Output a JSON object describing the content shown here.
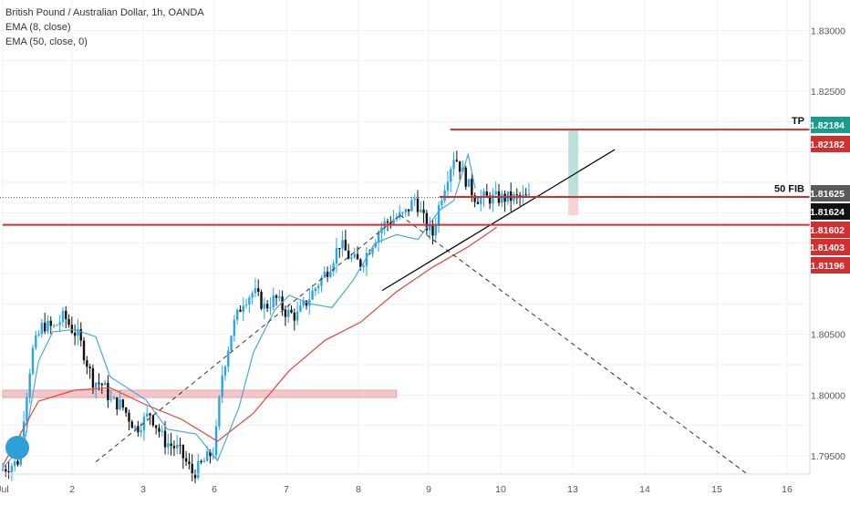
{
  "legend": {
    "symbol_line": "British Pound / Australian Dollar, 1h, OANDA",
    "ema_fast": "EMA (8, close)",
    "ema_slow": "EMA (50, close, 0)"
  },
  "colors": {
    "up": "#26a6e8",
    "down": "#111111",
    "ema_fast": "#4aa8e0",
    "ema_slow": "#e5443a",
    "level": "#d32f2f",
    "trendline": "#000000",
    "dashed": "#333333",
    "zone": "#f3c7c9",
    "tp_box": "#b9e2dc",
    "sl_box": "#f7d3d4",
    "tag_green": "#1a9c8a",
    "tag_red": "#d32f2f",
    "tag_black": "#111111"
  },
  "chart_data": {
    "type": "line",
    "title": "British Pound / Australian Dollar, 1h, OANDA",
    "xlabel": "",
    "ylabel": "",
    "ylim": [
      1.7935,
      1.8325
    ],
    "grid": true,
    "x_ticks": [
      "Jul",
      "2",
      "3",
      "6",
      "7",
      "8",
      "9",
      "10",
      "13",
      "14",
      "15",
      "16"
    ],
    "y_ticks": [
      "1.83000",
      "1.82500",
      "1.80500",
      "1.80000",
      "1.79500"
    ],
    "price_tags": [
      {
        "label": "1.82184",
        "color": "green"
      },
      {
        "label": "1.82182",
        "color": "red"
      },
      {
        "label": "1.81625",
        "color": "gray"
      },
      {
        "label": "1.81624",
        "color": "black"
      },
      {
        "label": "1.81602",
        "color": "red"
      },
      {
        "label": "1.81403",
        "color": "red"
      },
      {
        "label": "1.81196",
        "color": "red"
      }
    ],
    "annotations": [
      {
        "text": "TP",
        "price": 1.82184
      },
      {
        "text": "50 FIB",
        "price": 1.81625
      }
    ],
    "horizontal_levels": [
      {
        "price": 1.82184,
        "x_from": 6.25
      },
      {
        "price": 1.8163,
        "x_from": 6.1
      },
      {
        "price": 1.814,
        "x_from": 0
      }
    ],
    "support_zone": {
      "price_low": 1.7998,
      "price_high": 1.8004,
      "x_from": 0,
      "x_to": 5.5
    },
    "ascending_trendline": {
      "from": [
        5.3,
        1.8086
      ],
      "to": [
        8.55,
        1.8202
      ]
    },
    "dashed_trendline": {
      "from": [
        1.3,
        1.7945
      ],
      "to": [
        5.55,
        1.8148
      ]
    },
    "dashed_projection": {
      "from": [
        5.55,
        1.8148
      ],
      "to": [
        10.4,
        1.7935
      ]
    },
    "series": [
      {
        "name": "EMA (8, close)",
        "x": [
          0,
          0.3,
          0.5,
          0.7,
          1,
          1.3,
          1.5,
          2,
          2.3,
          2.7,
          3,
          3.3,
          3.5,
          3.8,
          4,
          4.3,
          4.6,
          4.9,
          5.2,
          5.5,
          5.8,
          6.1,
          6.3,
          6.5,
          6.6
        ],
        "values": [
          1.794,
          1.796,
          1.8028,
          1.8052,
          1.8054,
          1.8048,
          1.8015,
          1.7996,
          1.7972,
          1.7968,
          1.7946,
          1.799,
          1.8035,
          1.807,
          1.8082,
          1.8075,
          1.8072,
          1.8095,
          1.8125,
          1.8132,
          1.8128,
          1.8152,
          1.816,
          1.8198,
          1.817
        ]
      },
      {
        "name": "EMA (50, close, 0)",
        "x": [
          0,
          0.5,
          1,
          1.5,
          2,
          2.5,
          3,
          3.5,
          4,
          4.5,
          5,
          5.5,
          6,
          6.5,
          6.9
        ],
        "values": [
          1.7942,
          1.7995,
          1.8004,
          1.8006,
          1.7992,
          1.798,
          1.7962,
          1.7985,
          1.802,
          1.8045,
          1.806,
          1.8085,
          1.8105,
          1.8122,
          1.8138
        ]
      }
    ],
    "candles": {
      "x_start": 0,
      "step": 0.042,
      "ohlc": []
    },
    "close_anchor_path": {
      "x": [
        0,
        0.25,
        0.45,
        0.6,
        0.75,
        0.9,
        1.0,
        1.1,
        1.3,
        1.45,
        1.55,
        1.7,
        1.9,
        2.1,
        2.3,
        2.5,
        2.7,
        2.85,
        3.0,
        3.1,
        3.25,
        3.4,
        3.55,
        3.7,
        3.85,
        4.0,
        4.15,
        4.3,
        4.45,
        4.6,
        4.75,
        4.9,
        5.05,
        5.2,
        5.35,
        5.5,
        5.65,
        5.8,
        5.95,
        6.05,
        6.15,
        6.25,
        6.35,
        6.45,
        6.55,
        6.65
      ],
      "values": [
        1.7938,
        1.7945,
        1.8035,
        1.8058,
        1.8055,
        1.8065,
        1.8055,
        1.8048,
        1.8012,
        1.8008,
        1.7995,
        1.7992,
        1.7972,
        1.7985,
        1.7962,
        1.7955,
        1.7935,
        1.7945,
        1.7955,
        1.8015,
        1.8055,
        1.8078,
        1.8085,
        1.8072,
        1.808,
        1.8068,
        1.8065,
        1.8078,
        1.8092,
        1.8105,
        1.8125,
        1.8112,
        1.8108,
        1.8125,
        1.814,
        1.8145,
        1.8148,
        1.8162,
        1.814,
        1.8132,
        1.816,
        1.818,
        1.8198,
        1.8185,
        1.8172,
        1.8162
      ]
    }
  }
}
